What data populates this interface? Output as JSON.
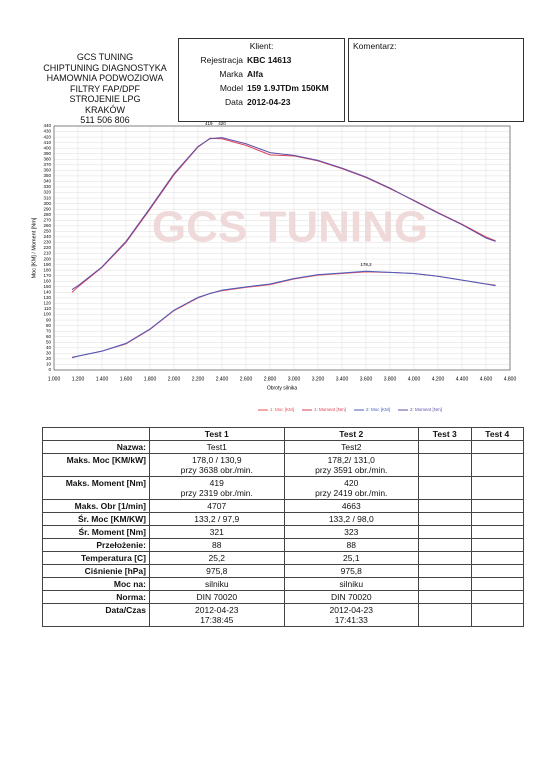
{
  "header": {
    "company": [
      "GCS TUNING",
      "CHIPTUNING DIAGNOSTYKA",
      "HAMOWNIA PODWOZIOWA",
      "FILTRY FAP/DPF",
      "STROJENIE LPG",
      "KRAKÓW",
      "511 506 806"
    ],
    "client_title": "Klient:",
    "client_rows": [
      [
        "Rejestracja",
        "KBC 14613"
      ],
      [
        "Marka",
        "Alfa"
      ],
      [
        "Model",
        "159 1.9JTDm 150KM"
      ],
      [
        "Data",
        "2012-04-23"
      ]
    ],
    "comment_title": "Komentarz:"
  },
  "chart_data": {
    "type": "line",
    "watermark": "GCS TUNING",
    "xlabel": "Obroty silnika",
    "ylabel": "Moc [KM] / Moment [Nm]",
    "annotations": [
      "419",
      "420",
      "178,2"
    ],
    "x": [
      1150,
      1200,
      1400,
      1600,
      1800,
      2000,
      2200,
      2300,
      2400,
      2600,
      2800,
      3000,
      3200,
      3400,
      3600,
      3800,
      4000,
      4200,
      4400,
      4600,
      4680
    ],
    "series": [
      {
        "name": "1: Moc [KM]",
        "color": "#e8505a",
        "values": [
          23,
          25,
          34,
          47,
          73,
          107,
          130,
          138,
          143,
          149,
          154,
          164,
          171,
          174,
          177,
          176,
          174,
          169,
          162,
          155,
          153
        ]
      },
      {
        "name": "1: Moment [Nm]",
        "color": "#d9405a",
        "values": [
          140,
          150,
          185,
          230,
          290,
          352,
          402,
          418,
          417,
          405,
          388,
          386,
          377,
          363,
          347,
          327,
          306,
          284,
          263,
          240,
          233
        ]
      },
      {
        "name": "2: Moc [KM]",
        "color": "#4a5cc0",
        "values": [
          22,
          25,
          34,
          48,
          74,
          108,
          131,
          138,
          144,
          150,
          155,
          165,
          172,
          175,
          178,
          176,
          174,
          169,
          162,
          155,
          152
        ]
      },
      {
        "name": "2: Moment [Nm]",
        "color": "#6050a8",
        "values": [
          145,
          152,
          186,
          232,
          292,
          354,
          403,
          417,
          419,
          408,
          392,
          387,
          378,
          364,
          348,
          328,
          305,
          283,
          262,
          238,
          232
        ]
      }
    ],
    "xlim": [
      1000,
      4800
    ],
    "ylim": [
      0,
      440
    ],
    "grid": true,
    "xticks": [
      {
        "value": 1000,
        "label": "1.000"
      },
      {
        "value": 1200,
        "label": "1.200"
      },
      {
        "value": 1400,
        "label": "1.400"
      },
      {
        "value": 1600,
        "label": "1.600"
      },
      {
        "value": 1800,
        "label": "1.800"
      },
      {
        "value": 2000,
        "label": "2.000"
      },
      {
        "value": 2200,
        "label": "2.200"
      },
      {
        "value": 2400,
        "label": "2.400"
      },
      {
        "value": 2600,
        "label": "2.600"
      },
      {
        "value": 2800,
        "label": "2.800"
      },
      {
        "value": 3000,
        "label": "3.000"
      },
      {
        "value": 3200,
        "label": "3.200"
      },
      {
        "value": 3400,
        "label": "3.400"
      },
      {
        "value": 3600,
        "label": "3.600"
      },
      {
        "value": 3800,
        "label": "3.800"
      },
      {
        "value": 4000,
        "label": "4.000"
      },
      {
        "value": 4200,
        "label": "4.200"
      },
      {
        "value": 4400,
        "label": "4.400"
      },
      {
        "value": 4600,
        "label": "4.600"
      },
      {
        "value": 4800,
        "label": "4.800"
      }
    ],
    "yticks": [
      0,
      10,
      20,
      30,
      40,
      50,
      60,
      70,
      80,
      90,
      100,
      110,
      120,
      130,
      140,
      150,
      160,
      170,
      180,
      190,
      200,
      210,
      220,
      230,
      240,
      250,
      260,
      270,
      280,
      290,
      300,
      310,
      320,
      330,
      340,
      350,
      360,
      370,
      380,
      390,
      400,
      410,
      420,
      430,
      440
    ]
  },
  "table": {
    "columns": [
      "Test 1",
      "Test 2",
      "Test 3",
      "Test 4"
    ],
    "rows": [
      [
        "Nazwa:",
        "Test1",
        "Test2"
      ],
      [
        "Maks. Moc [KM/kW]",
        "178,0 / 130,9\nprzy 3638 obr./min.",
        "178,2/ 131,0\nprzy 3591 obr./min."
      ],
      [
        "Maks. Moment [Nm]",
        "419\nprzy 2319 obr./min.",
        "420\nprzy 2419 obr./min."
      ],
      [
        "Maks. Obr [1/min]",
        "4707",
        "4663"
      ],
      [
        "Śr. Moc [KM/KW]",
        "133,2 / 97,9",
        "133,2 / 98,0"
      ],
      [
        "Śr. Moment [Nm]",
        "321",
        "323"
      ],
      [
        "Przełożenie:",
        "88",
        "88"
      ],
      [
        "Temperatura [C]",
        "25,2",
        "25,1"
      ],
      [
        "Ciśnienie [hPa]",
        "975,8",
        "975,8"
      ],
      [
        "Moc na:",
        "silniku",
        "silniku"
      ],
      [
        "Norma:",
        "DIN 70020",
        "DIN 70020"
      ],
      [
        "Data/Czas",
        "2012-04-23\n17:38:45",
        "2012-04-23\n17:41:33"
      ]
    ]
  }
}
